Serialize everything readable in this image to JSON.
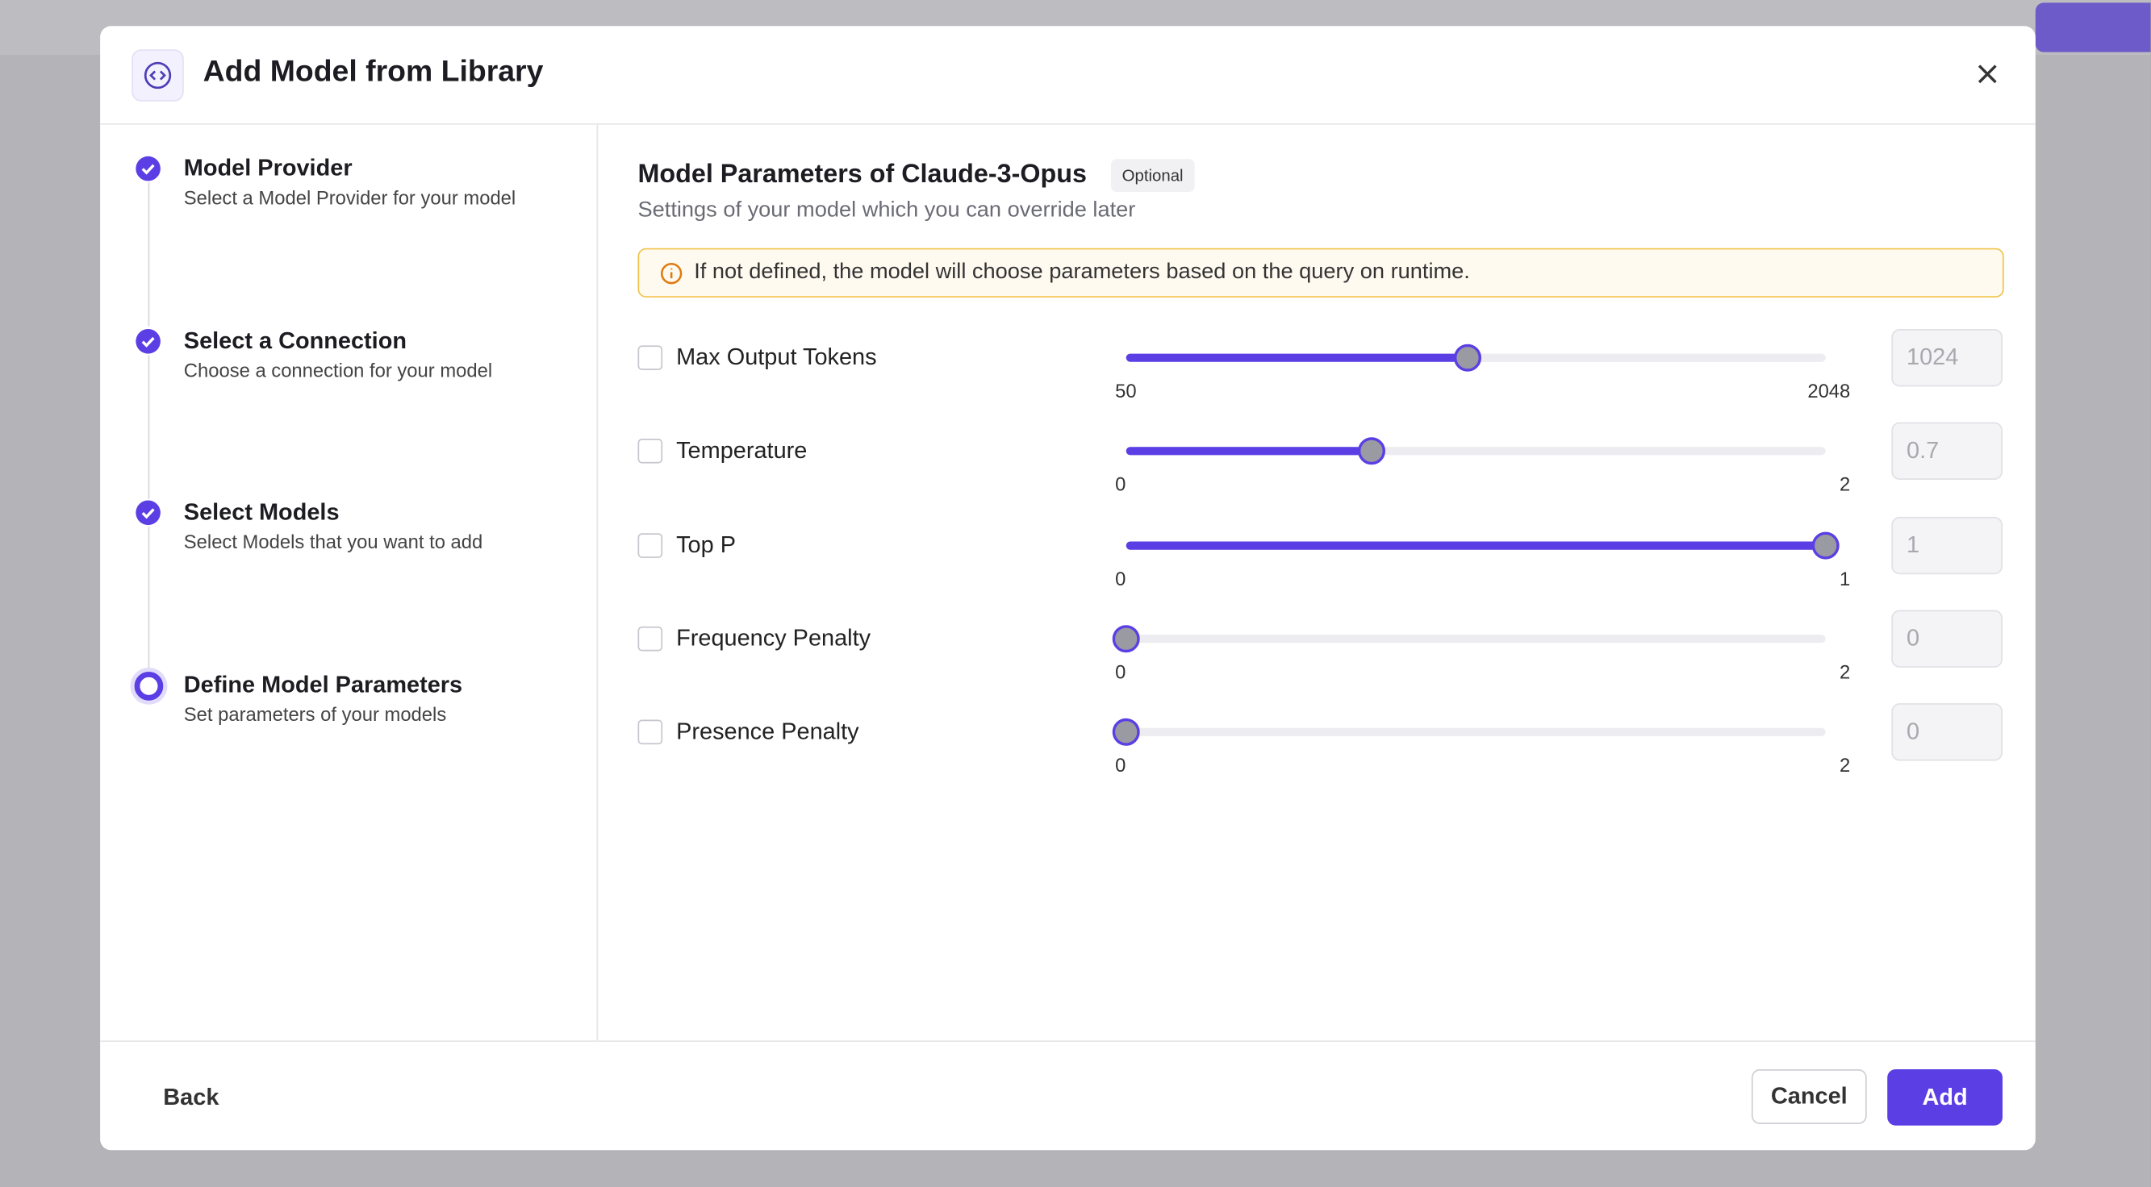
{
  "header": {
    "title": "Add Model from Library"
  },
  "steps": [
    {
      "title": "Model Provider",
      "description": "Select a Model Provider for your model"
    },
    {
      "title": "Select a Connection",
      "description": "Choose a connection for your model"
    },
    {
      "title": "Select Models",
      "description": "Select Models that you want to add"
    },
    {
      "title": "Define Model Parameters",
      "description": "Set parameters of your models"
    }
  ],
  "main": {
    "title": "Model Parameters of Claude-3-Opus",
    "badge": "Optional",
    "subtitle": "Settings of your model which you can override later",
    "alert": "If not defined, the model will choose parameters based on the query on runtime."
  },
  "parameters": [
    {
      "label": "Max Output Tokens",
      "min": 50,
      "max": 2048,
      "value": 1024
    },
    {
      "label": "Temperature",
      "min": 0,
      "max": 2,
      "value": 0.7
    },
    {
      "label": "Top P",
      "min": 0,
      "max": 1,
      "value": 1
    },
    {
      "label": "Frequency Penalty",
      "min": 0,
      "max": 2,
      "value": 0
    },
    {
      "label": "Presence Penalty",
      "min": 0,
      "max": 2,
      "value": 0
    }
  ],
  "footer": {
    "back": "Back",
    "cancel": "Cancel",
    "add": "Add"
  }
}
